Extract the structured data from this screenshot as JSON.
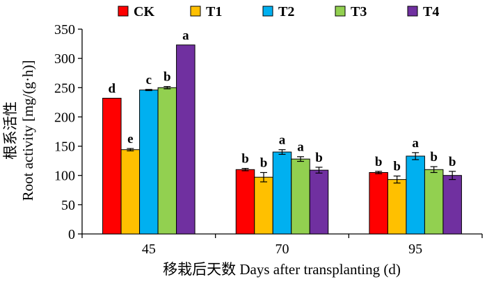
{
  "chart_data": {
    "type": "bar",
    "title": "",
    "xlabel": "移栽后天数 Days after transplanting (d)",
    "ylabel_cn": "根系活性",
    "ylabel": "Root activity [mg/(g·h)]",
    "ylim": [
      0,
      350
    ],
    "yticks": [
      0,
      50,
      100,
      150,
      200,
      250,
      300,
      350
    ],
    "categories": [
      "45",
      "70",
      "95"
    ],
    "legend_position": "top",
    "series": [
      {
        "name": "CK",
        "color": "#ff0000",
        "values": [
          232,
          110,
          105
        ],
        "errors": [
          0,
          2,
          2
        ],
        "labels": [
          "d",
          "b",
          "b"
        ]
      },
      {
        "name": "T1",
        "color": "#ffc000",
        "values": [
          144,
          97,
          93
        ],
        "errors": [
          2,
          8,
          6
        ],
        "labels": [
          "e",
          "b",
          "b"
        ]
      },
      {
        "name": "T2",
        "color": "#00b0f0",
        "values": [
          246,
          140,
          133
        ],
        "errors": [
          1,
          4,
          6
        ],
        "labels": [
          "c",
          "a",
          "a"
        ]
      },
      {
        "name": "T3",
        "color": "#92d050",
        "values": [
          250,
          128,
          110
        ],
        "errors": [
          2,
          4,
          5
        ],
        "labels": [
          "b",
          "a",
          "b"
        ]
      },
      {
        "name": "T4",
        "color": "#7030a0",
        "values": [
          323,
          109,
          100
        ],
        "errors": [
          0,
          5,
          7
        ],
        "labels": [
          "a",
          "b",
          "b"
        ]
      }
    ]
  }
}
